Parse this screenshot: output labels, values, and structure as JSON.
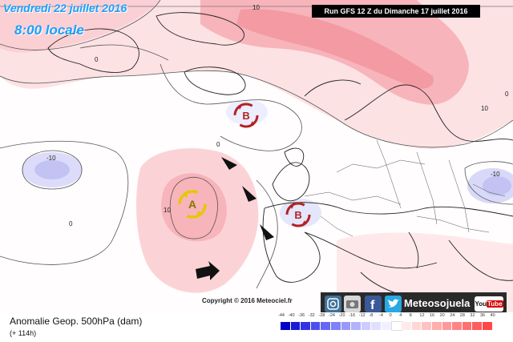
{
  "map": {
    "date": "Vendredi 22 juillet 2016",
    "hour": "8:00 locale",
    "run": "Run GFS 12 Z du Dimanche 17 juillet 2016",
    "copyright": "Copyright © 2016 Meteociel.fr",
    "contour_labels": [
      "10",
      "10",
      "-10",
      "-10",
      "10",
      "0",
      "0",
      "0",
      "0"
    ],
    "pressure_centers": [
      {
        "letter": "B",
        "type": "low",
        "color": "#b22222"
      },
      {
        "letter": "A",
        "type": "high",
        "color": "#e6c800"
      },
      {
        "letter": "B",
        "type": "low",
        "color": "#b22222"
      }
    ],
    "arrows": [
      "arrow",
      "arrow",
      "arrow",
      "arrow"
    ]
  },
  "social": {
    "brand": "Meteosojuela",
    "icons": [
      "instagram-icon",
      "camera-icon",
      "facebook-icon",
      "twitter-icon"
    ],
    "youtube": "YouTube"
  },
  "legend": {
    "title": "Anomalie Geop. 500hPa (dam)",
    "subtitle": "(+ 114h)",
    "ticks": [
      "-44",
      "-40",
      "-36",
      "-32",
      "-28",
      "-24",
      "-20",
      "-16",
      "-12",
      "-8",
      "-4",
      "0",
      "4",
      "8",
      "12",
      "16",
      "20",
      "24",
      "28",
      "32",
      "36",
      "40"
    ],
    "colors": [
      "#0000c8",
      "#1a1ad8",
      "#3333e6",
      "#4d4df0",
      "#6666f5",
      "#8080f8",
      "#9999fa",
      "#b3b3fc",
      "#ccccfd",
      "#e0e0fe",
      "#f0f0ff",
      "#ffffff",
      "#ffeaea",
      "#ffd6d6",
      "#ffc2c2",
      "#ffadad",
      "#ff9999",
      "#ff8585",
      "#ff7070",
      "#ff5c5c",
      "#ff4747"
    ]
  }
}
